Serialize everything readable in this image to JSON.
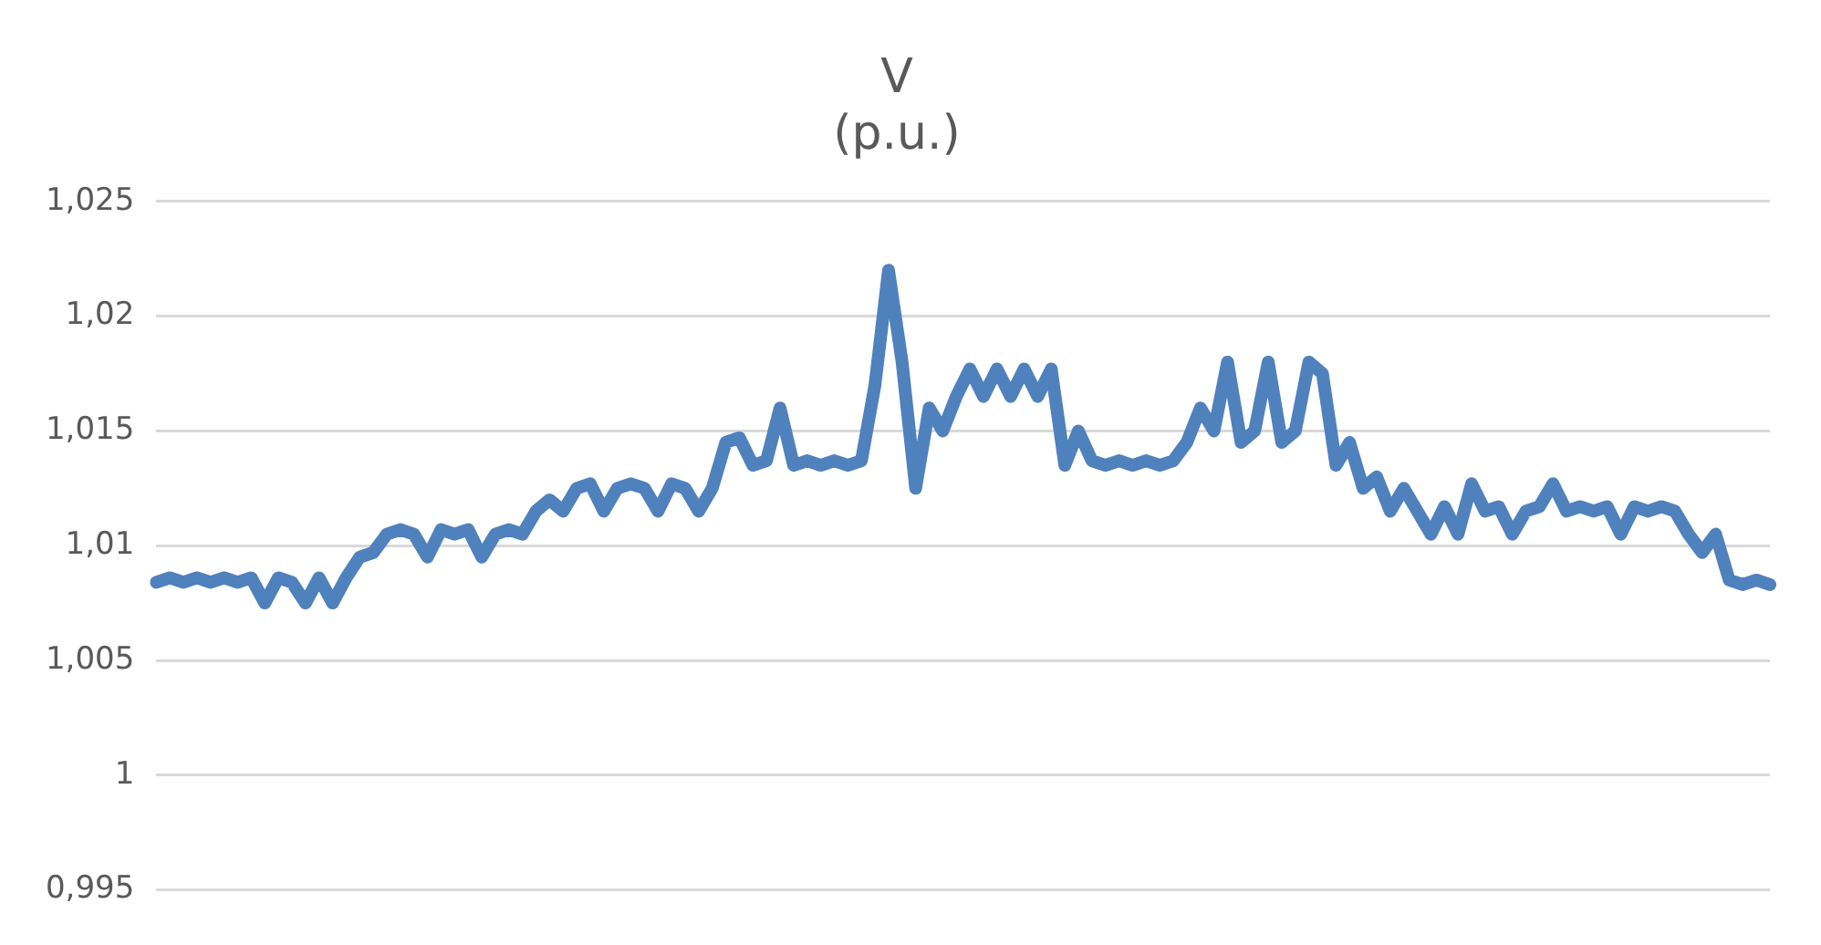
{
  "chart_data": {
    "type": "line",
    "title": "V\n(p.u.)",
    "categories": [
      null,
      null,
      null,
      null,
      null,
      null,
      null,
      null,
      null,
      null,
      null,
      null,
      null,
      null,
      null,
      null,
      null,
      null,
      null,
      null,
      null,
      null,
      null,
      null,
      null,
      null,
      null,
      null,
      null,
      null,
      null,
      null,
      null,
      null,
      null,
      null,
      null,
      null,
      null,
      null,
      null,
      null,
      null,
      null,
      null,
      null,
      null,
      null,
      null,
      null,
      null,
      null,
      null,
      null,
      null,
      null,
      null,
      null,
      null,
      null,
      null,
      null,
      null,
      null,
      null,
      null,
      null,
      null,
      null,
      null,
      null,
      null,
      null,
      null,
      null,
      null,
      null,
      null,
      null,
      null,
      null,
      null,
      null,
      null,
      null,
      null,
      null,
      null,
      null,
      null,
      null,
      null,
      null,
      null,
      null,
      null,
      null,
      null,
      null,
      null,
      null,
      null,
      null,
      null,
      null,
      null,
      null,
      null,
      null,
      null,
      null,
      null,
      null,
      null,
      null,
      null,
      null,
      null,
      null,
      null
    ],
    "series": [
      {
        "color": "#4f81bd",
        "values": [
          1.0084,
          1.0086,
          1.0084,
          1.0086,
          1.0084,
          1.0086,
          1.0084,
          1.0086,
          1.0075,
          1.0086,
          1.0084,
          1.0075,
          1.0086,
          1.0075,
          1.0086,
          1.0095,
          1.0097,
          1.0105,
          1.0107,
          1.0105,
          1.0095,
          1.0107,
          1.0105,
          1.0107,
          1.0095,
          1.0105,
          1.0107,
          1.0105,
          1.0115,
          1.012,
          1.0115,
          1.0125,
          1.0127,
          1.0115,
          1.0125,
          1.0127,
          1.0125,
          1.0115,
          1.0127,
          1.0125,
          1.0115,
          1.0125,
          1.0145,
          1.0147,
          1.0135,
          1.0137,
          1.016,
          1.0135,
          1.0137,
          1.0135,
          1.0137,
          1.0135,
          1.0137,
          1.017,
          1.022,
          1.018,
          1.0125,
          1.016,
          1.015,
          1.0165,
          1.0177,
          1.0165,
          1.0177,
          1.0165,
          1.0177,
          1.0165,
          1.0177,
          1.0135,
          1.015,
          1.0137,
          1.0135,
          1.0137,
          1.0135,
          1.0137,
          1.0135,
          1.0137,
          1.0145,
          1.016,
          1.015,
          1.018,
          1.0145,
          1.015,
          1.018,
          1.0145,
          1.015,
          1.018,
          1.0175,
          1.0135,
          1.0145,
          1.0125,
          1.013,
          1.0115,
          1.0125,
          1.0115,
          1.0105,
          1.0117,
          1.0105,
          1.0127,
          1.0115,
          1.0117,
          1.0105,
          1.0115,
          1.0117,
          1.0127,
          1.0115,
          1.0117,
          1.0115,
          1.0117,
          1.0105,
          1.0117,
          1.0115,
          1.0117,
          1.0115,
          1.0105,
          1.0097,
          1.0105,
          1.0085,
          1.0083,
          1.0085,
          1.0083
        ]
      }
    ],
    "ylim": [
      0.995,
      1.025
    ],
    "yticks": [
      {
        "value": 0.995,
        "label": "0,995"
      },
      {
        "value": 1,
        "label": "1"
      },
      {
        "value": 1.005,
        "label": "1,005"
      },
      {
        "value": 1.01,
        "label": "1,01"
      },
      {
        "value": 1.015,
        "label": "1,015"
      },
      {
        "value": 1.02,
        "label": "1,02"
      },
      {
        "value": 1.025,
        "label": "1,025"
      }
    ],
    "grid": "y",
    "legend": false,
    "marker": "none",
    "line_style": "solid"
  }
}
